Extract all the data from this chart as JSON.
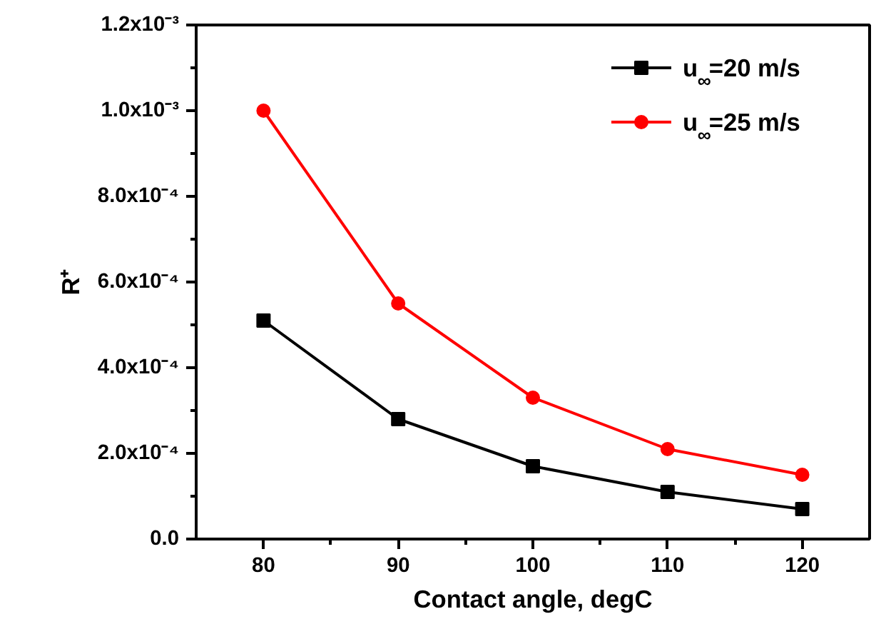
{
  "chart_data": {
    "type": "line",
    "xlabel": "Contact angle, degC",
    "ylabel": "R⁺",
    "x": [
      80,
      90,
      100,
      110,
      120
    ],
    "series": [
      {
        "name": "u$_{∞}$=20 m/s",
        "color": "#000000",
        "marker": "square",
        "values": [
          0.00051,
          0.00028,
          0.00017,
          0.00011,
          7e-05
        ]
      },
      {
        "name": "u$_{∞}$=25 m/s",
        "color": "#ff0000",
        "marker": "circle",
        "values": [
          0.001,
          0.00055,
          0.00033,
          0.00021,
          0.00015
        ]
      }
    ],
    "xlim": [
      75,
      125
    ],
    "xticks": [
      80,
      90,
      100,
      110,
      120
    ],
    "ylim": [
      0,
      0.0012
    ],
    "yticks": [
      {
        "value": 0,
        "label": "0.0"
      },
      {
        "value": 0.0002,
        "label": "2.0x10⁻⁴"
      },
      {
        "value": 0.0004,
        "label": "4.0x10⁻⁴"
      },
      {
        "value": 0.0006,
        "label": "6.0x10⁻⁴"
      },
      {
        "value": 0.0008,
        "label": "8.0x10⁻⁴"
      },
      {
        "value": 0.001,
        "label": "1.0x10⁻³"
      },
      {
        "value": 0.0012,
        "label": "1.2x10⁻³"
      }
    ],
    "grid": false,
    "legend": "top right",
    "line_style": "solid"
  }
}
